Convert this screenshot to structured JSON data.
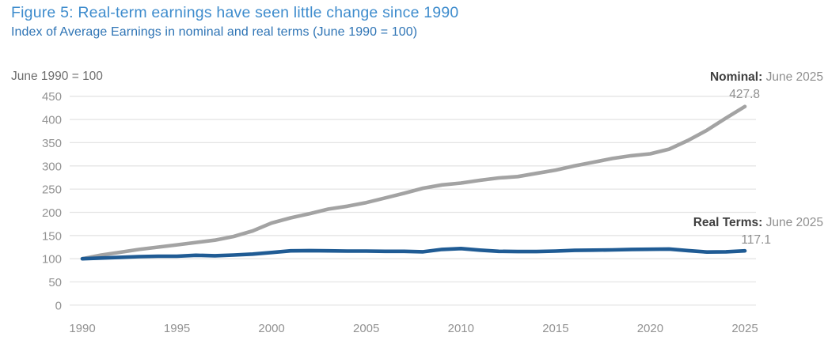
{
  "header": {
    "title": "Figure 5: Real-term earnings have seen little change since 1990",
    "subtitle": "Index of Average Earnings in nominal and real terms (June 1990 = 100)"
  },
  "colors": {
    "title_blue": "#3e8ccd",
    "subtitle_blue": "#2e74b5",
    "nominal_line": "#a3a3a3",
    "real_terms_line": "#1f5b94",
    "gridline": "#e4e4e4",
    "tick_label": "#929292",
    "annotation_bold": "#3f3f3f",
    "annotation_gray": "#8f8f8f"
  },
  "chart_data": {
    "type": "line",
    "title": "Index of Average Earnings in nominal and real terms (June 1990 = 100)",
    "axis_title": "June 1990 = 100",
    "grid": "horizontal",
    "legend_position": "none",
    "ylim": [
      0,
      450
    ],
    "yticks": [
      0,
      50,
      100,
      150,
      200,
      250,
      300,
      350,
      400,
      450
    ],
    "xticks": [
      1990,
      1995,
      2000,
      2005,
      2010,
      2015,
      2020,
      2025
    ],
    "x": [
      1990,
      1991,
      1992,
      1993,
      1994,
      1995,
      1996,
      1997,
      1998,
      1999,
      2000,
      2001,
      2002,
      2003,
      2004,
      2005,
      2006,
      2007,
      2008,
      2009,
      2010,
      2011,
      2012,
      2013,
      2014,
      2015,
      2016,
      2017,
      2018,
      2019,
      2020,
      2021,
      2022,
      2023,
      2024,
      2025
    ],
    "series": [
      {
        "name": "Nominal",
        "color": "#a3a3a3",
        "values": [
          100,
          108,
          114,
          120,
          125,
          130,
          135,
          140,
          148,
          160,
          177,
          188,
          197,
          207,
          213,
          221,
          231,
          241,
          252,
          259,
          263,
          269,
          274,
          277,
          284,
          291,
          300,
          308,
          316,
          322,
          326,
          336,
          355,
          377,
          403,
          427.8
        ]
      },
      {
        "name": "Real Terms",
        "color": "#1f5b94",
        "values": [
          100,
          101.5,
          103,
          104.5,
          105.5,
          105.5,
          107.5,
          106.5,
          108,
          110,
          113.5,
          117,
          117.5,
          117,
          116.5,
          116.5,
          116,
          116,
          115,
          120,
          122,
          118.5,
          116,
          115.5,
          115.5,
          116.5,
          118,
          118.5,
          119,
          120,
          120.5,
          121,
          117.5,
          114.5,
          115,
          117.1
        ]
      }
    ],
    "annotations": [
      {
        "series": "Nominal",
        "label": "Nominal:",
        "date": "June 2025",
        "value": "427.8"
      },
      {
        "series": "Real Terms",
        "label": "Real Terms:",
        "date": "June 2025",
        "value": "117.1"
      }
    ]
  }
}
